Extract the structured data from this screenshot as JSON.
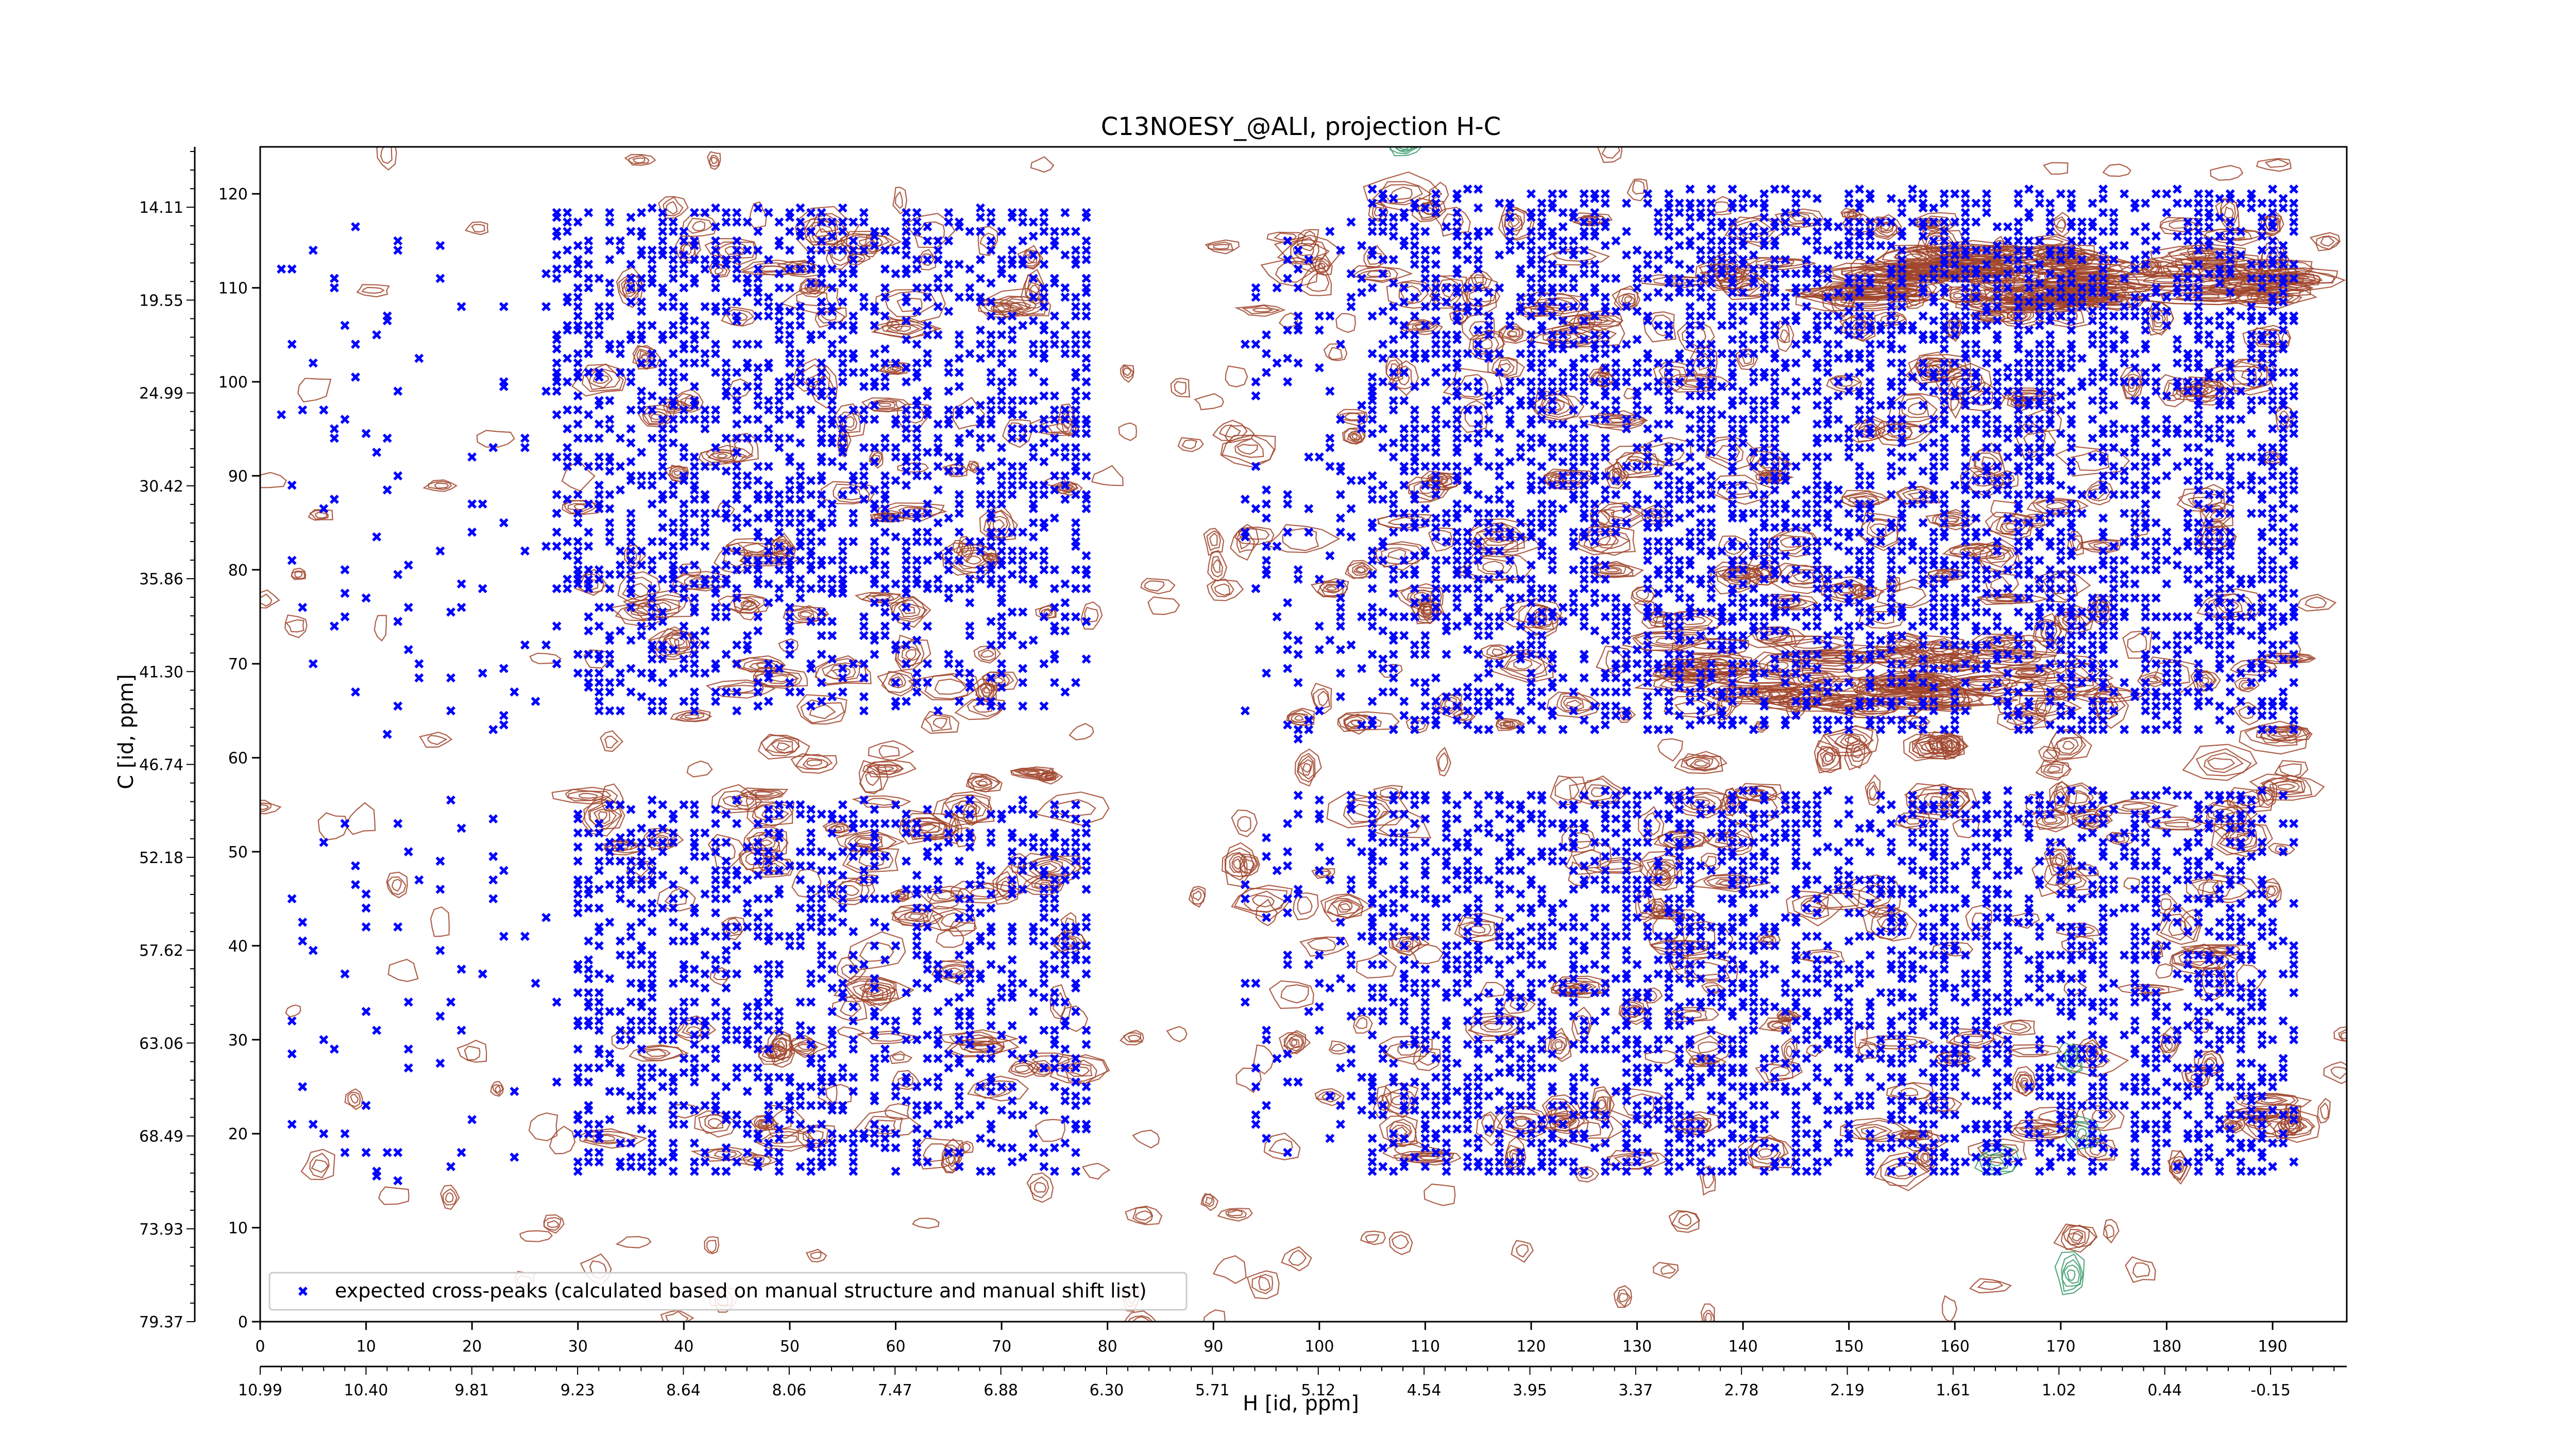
{
  "chart_data": {
    "type": "scatter",
    "title": "C13NOESY_@ALI, projection H-C",
    "xlabel": "H [id, ppm]",
    "ylabel": "C [id, ppm]",
    "xlim": [
      0,
      197
    ],
    "ylim": [
      0,
      125
    ],
    "x_index_ticks": [
      "0",
      "10",
      "20",
      "30",
      "40",
      "50",
      "60",
      "70",
      "80",
      "90",
      "100",
      "110",
      "120",
      "130",
      "140",
      "150",
      "160",
      "170",
      "180",
      "190"
    ],
    "x_ppm_ticks": [
      "10.99",
      "10.40",
      "9.81",
      "9.23",
      "8.64",
      "8.06",
      "7.47",
      "6.88",
      "6.30",
      "5.71",
      "5.12",
      "4.54",
      "3.95",
      "3.37",
      "2.78",
      "2.19",
      "1.61",
      "1.02",
      "0.44",
      "-0.15"
    ],
    "y_index_ticks": [
      "0",
      "10",
      "20",
      "30",
      "40",
      "50",
      "60",
      "70",
      "80",
      "90",
      "100",
      "110",
      "120"
    ],
    "y_ppm_ticks": [
      "79.37",
      "73.93",
      "68.49",
      "63.06",
      "57.62",
      "52.18",
      "46.74",
      "41.30",
      "35.86",
      "30.42",
      "24.99",
      "19.55",
      "14.11"
    ],
    "grid": false,
    "legend_position": "lower-left",
    "series": [
      {
        "name": "expected cross-peaks (calculated based on manual structure and manual shift list)",
        "color": "#0000ff",
        "marker": "x",
        "clusters": [
          {
            "x": [
              28,
              78
            ],
            "y": [
              78,
              118
            ],
            "density": 0.55
          },
          {
            "x": [
              30,
              78
            ],
            "y": [
              65,
              80
            ],
            "density": 0.4
          },
          {
            "x": [
              30,
              78
            ],
            "y": [
              16,
              55
            ],
            "density": 0.5
          },
          {
            "x": [
              2,
              28
            ],
            "y": [
              15,
              118
            ],
            "density": 0.06
          },
          {
            "x": [
              93,
              105
            ],
            "y": [
              18,
              118
            ],
            "density": 0.18
          },
          {
            "x": [
              105,
              192
            ],
            "y": [
              75,
              120
            ],
            "density": 0.7
          },
          {
            "x": [
              105,
              192
            ],
            "y": [
              63,
              75
            ],
            "density": 0.6
          },
          {
            "x": [
              105,
              192
            ],
            "y": [
              16,
              56
            ],
            "density": 0.65
          }
        ]
      },
      {
        "name": "positive contours",
        "color": "#a0442a",
        "marker": "contour"
      },
      {
        "name": "negative contours",
        "color": "#3a9a6a",
        "marker": "contour"
      }
    ]
  }
}
